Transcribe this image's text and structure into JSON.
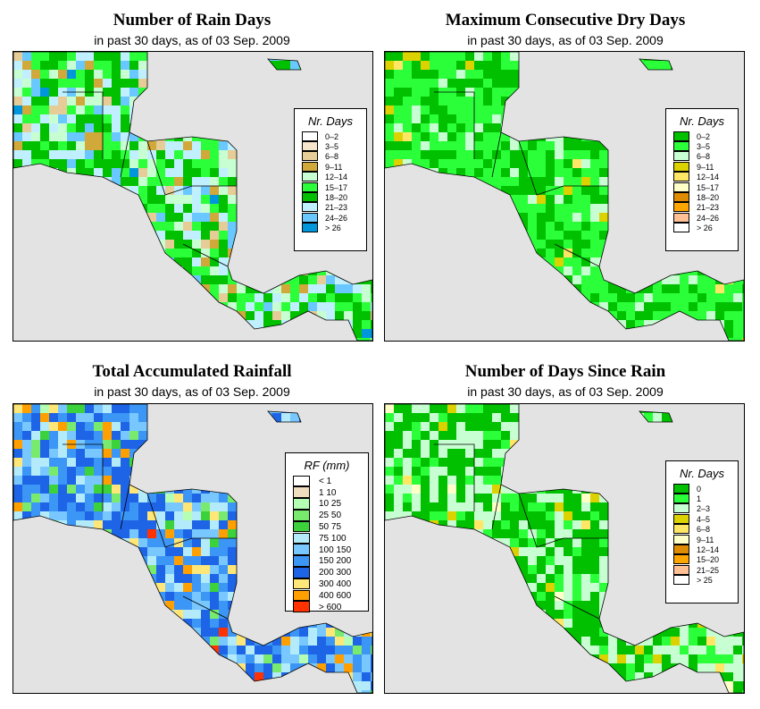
{
  "maps": [
    {
      "title": "Number of Rain Days",
      "subtitle": "in past 30 days, as of  03 Sep. 2009",
      "legend": {
        "title": "Nr. Days",
        "items": [
          {
            "label": "0–2",
            "color": "#ffffff"
          },
          {
            "label": "3–5",
            "color": "#f5e6cc"
          },
          {
            "label": "6–8",
            "color": "#e6cc96"
          },
          {
            "label": "9–11",
            "color": "#d1a83a"
          },
          {
            "label": "12–14",
            "color": "#c8ffd2"
          },
          {
            "label": "15–17",
            "color": "#2aff3a"
          },
          {
            "label": "18–20",
            "color": "#00c000"
          },
          {
            "label": "21–23",
            "color": "#c0f0ff"
          },
          {
            "label": "24–26",
            "color": "#69c8ff"
          },
          {
            "label": "> 26",
            "color": "#0096dc"
          }
        ]
      }
    },
    {
      "title": "Maximum Consecutive Dry Days",
      "subtitle": "in past 30 days, as of  03 Sep. 2009",
      "legend": {
        "title": "Nr. Days",
        "items": [
          {
            "label": "0–2",
            "color": "#00c000"
          },
          {
            "label": "3–5",
            "color": "#2aff3a"
          },
          {
            "label": "6–8",
            "color": "#c8ffd2"
          },
          {
            "label": "9–11",
            "color": "#dcd200"
          },
          {
            "label": "12–14",
            "color": "#ffe664"
          },
          {
            "label": "15–17",
            "color": "#ffffc8"
          },
          {
            "label": "18–20",
            "color": "#e08c00"
          },
          {
            "label": "21–23",
            "color": "#ffa500"
          },
          {
            "label": "24–26",
            "color": "#ffc096"
          },
          {
            "label": "> 26",
            "color": "#ffffff"
          }
        ]
      }
    },
    {
      "title": "Total Accumulated Rainfall",
      "subtitle": "in past 30 days, as of  03 Sep. 2009",
      "legend": {
        "title": "RF (mm)",
        "items": [
          {
            "label": "< 1",
            "color": "#ffffff"
          },
          {
            "label": "1  10",
            "color": "#f0dcbe"
          },
          {
            "label": "10  25",
            "color": "#b4ffb4"
          },
          {
            "label": "25  50",
            "color": "#78eb6e"
          },
          {
            "label": "50  75",
            "color": "#3cd23c"
          },
          {
            "label": "75  100",
            "color": "#b4ebfa"
          },
          {
            "label": "100  150",
            "color": "#78c8ff"
          },
          {
            "label": "150  200",
            "color": "#3c96f5"
          },
          {
            "label": "200  300",
            "color": "#1e64e6"
          },
          {
            "label": "300  400",
            "color": "#ffe678"
          },
          {
            "label": "400  600",
            "color": "#ffa000"
          },
          {
            "label": "> 600",
            "color": "#ff3200"
          }
        ]
      }
    },
    {
      "title": "Number of Days Since Rain",
      "subtitle": "in past 30 days, as of  03 Sep. 2009",
      "legend": {
        "title": "Nr. Days",
        "items": [
          {
            "label": "0",
            "color": "#00c000"
          },
          {
            "label": "1",
            "color": "#2aff3a"
          },
          {
            "label": "2–3",
            "color": "#c8ffd2"
          },
          {
            "label": "4–5",
            "color": "#dcd200"
          },
          {
            "label": "6–8",
            "color": "#ffe664"
          },
          {
            "label": "9–11",
            "color": "#ffffc8"
          },
          {
            "label": "12–14",
            "color": "#e08c00"
          },
          {
            "label": "15–20",
            "color": "#ffa500"
          },
          {
            "label": "21–25",
            "color": "#ffc096"
          },
          {
            "label": "> 25",
            "color": "#ffffff"
          }
        ]
      }
    }
  ]
}
